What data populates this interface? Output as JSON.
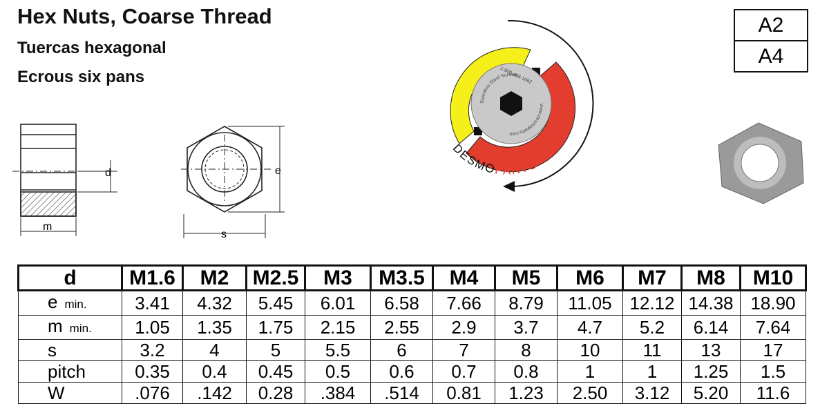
{
  "header": {
    "title": "Hex Nuts, Coarse Thread",
    "subtitle_es": "Tuercas hexagonal",
    "subtitle_fr": "Ecrous six pans"
  },
  "grades": [
    "A2",
    "A4"
  ],
  "drawing": {
    "d": "d",
    "m": "m",
    "e": "e",
    "s": "s"
  },
  "logo": {
    "ring_top": "Stainless Steel Screws",
    "phone": "1-800-406-1062",
    "web": "www.desmoparts.com",
    "brand_1": "DESMO",
    "brand_2": "PARTS"
  },
  "table": {
    "header": [
      "d",
      "M1.6",
      "M2",
      "M2.5",
      "M3",
      "M3.5",
      "M4",
      "M5",
      "M6",
      "M7",
      "M8",
      "M10"
    ],
    "rows": [
      {
        "label": "e",
        "qualifier": "min.",
        "values": [
          "3.41",
          "4.32",
          "5.45",
          "6.01",
          "6.58",
          "7.66",
          "8.79",
          "11.05",
          "12.12",
          "14.38",
          "18.90"
        ]
      },
      {
        "label": "m",
        "qualifier": "min.",
        "values": [
          "1.05",
          "1.35",
          "1.75",
          "2.15",
          "2.55",
          "2.9",
          "3.7",
          "4.7",
          "5.2",
          "6.14",
          "7.64"
        ]
      },
      {
        "label": "s",
        "values": [
          "3.2",
          "4",
          "5",
          "5.5",
          "6",
          "7",
          "8",
          "10",
          "11",
          "13",
          "17"
        ]
      },
      {
        "label": "pitch",
        "values": [
          "0.35",
          "0.4",
          "0.45",
          "0.5",
          "0.6",
          "0.7",
          "0.8",
          "1",
          "1",
          "1.25",
          "1.5"
        ]
      },
      {
        "label": "W",
        "values": [
          ".076",
          ".142",
          "0.28",
          ".384",
          ".514",
          "0.81",
          "1.23",
          "2.50",
          "3.12",
          "5.20",
          "11.6"
        ]
      }
    ]
  }
}
